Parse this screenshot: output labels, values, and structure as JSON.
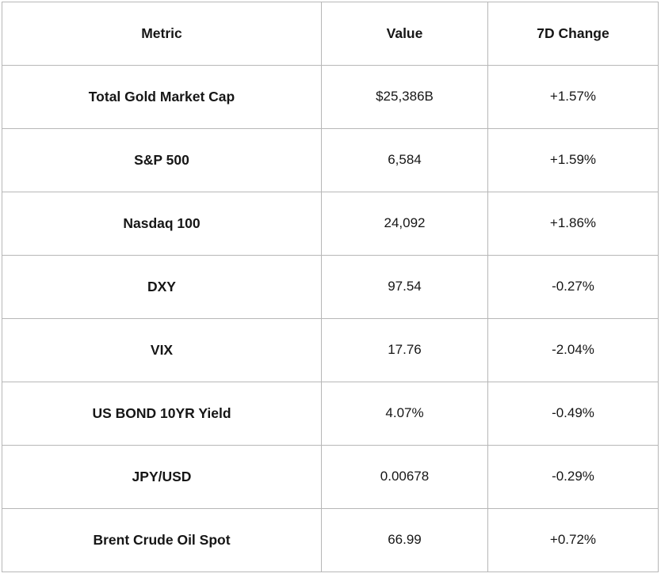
{
  "colors": {
    "background": "#ffffff",
    "grid_line": "#b7b7b7",
    "text": "#161616"
  },
  "table": {
    "headers": [
      "Metric",
      "Value",
      "7D Change"
    ],
    "rows": [
      {
        "metric": "Total Gold Market Cap",
        "value": "$25,386B",
        "change": "+1.57%"
      },
      {
        "metric": "S&P 500",
        "value": "6,584",
        "change": "+1.59%"
      },
      {
        "metric": "Nasdaq 100",
        "value": "24,092",
        "change": "+1.86%"
      },
      {
        "metric": "DXY",
        "value": "97.54",
        "change": "-0.27%"
      },
      {
        "metric": "VIX",
        "value": "17.76",
        "change": "-2.04%"
      },
      {
        "metric": "US BOND 10YR Yield",
        "value": "4.07%",
        "change": "-0.49%"
      },
      {
        "metric": "JPY/USD",
        "value": "0.00678",
        "change": "-0.29%"
      },
      {
        "metric": "Brent Crude Oil Spot",
        "value": "66.99",
        "change": "+0.72%"
      }
    ]
  },
  "chart_data": {
    "type": "table",
    "title": "",
    "columns": [
      "Metric",
      "Value",
      "7D Change"
    ],
    "rows": [
      [
        "Total Gold Market Cap",
        "$25,386B",
        "+1.57%"
      ],
      [
        "S&P 500",
        "6,584",
        "+1.59%"
      ],
      [
        "Nasdaq 100",
        "24,092",
        "+1.86%"
      ],
      [
        "DXY",
        "97.54",
        "-0.27%"
      ],
      [
        "VIX",
        "17.76",
        "-2.04%"
      ],
      [
        "US BOND 10YR Yield",
        "4.07%",
        "-0.49%"
      ],
      [
        "JPY/USD",
        "0.00678",
        "-0.29%"
      ],
      [
        "Brent Crude Oil Spot",
        "66.99",
        "+0.72%"
      ]
    ],
    "values_numeric": {
      "total_gold_market_cap_billions_usd": 25386,
      "sp500": 6584,
      "nasdaq100": 24092,
      "dxy": 97.54,
      "vix": 17.76,
      "us_bond_10yr_yield_pct": 4.07,
      "jpy_usd": 0.00678,
      "brent_crude_oil_spot": 66.99
    },
    "change_7d_pct": [
      1.57,
      1.59,
      1.86,
      -0.27,
      -2.04,
      -0.49,
      -0.29,
      0.72
    ],
    "layout": {
      "grid": true,
      "text_align": "center",
      "header_bold": true
    }
  }
}
